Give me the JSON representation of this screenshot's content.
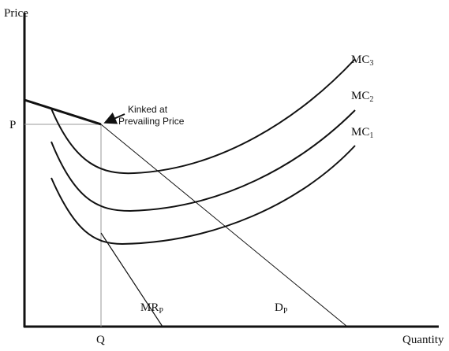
{
  "axes": {
    "y_label": "Price",
    "x_label": "Quantity",
    "price_mark": "P",
    "quantity_mark": "Q"
  },
  "annotation": {
    "lines": [
      "Kinked at",
      "Prevailing Price"
    ]
  },
  "curves": [
    {
      "main": "MC",
      "sub": "3"
    },
    {
      "main": "MC",
      "sub": "2"
    },
    {
      "main": "MC",
      "sub": "1"
    },
    {
      "main": "MR",
      "sub": "P"
    },
    {
      "main": "D",
      "sub": "P"
    }
  ]
}
